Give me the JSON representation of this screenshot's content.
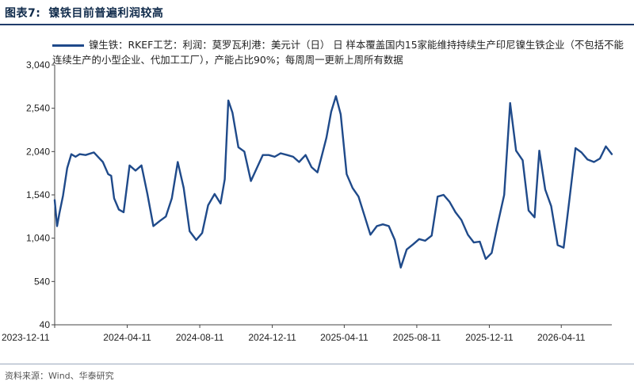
{
  "figure": {
    "number": "图表7:",
    "title": "镍铁目前普遍利润较高"
  },
  "legend_text": "镍生铁：RKEF工艺：利润：莫罗瓦利港：美元计（日） 日 样本覆盖国内15家能维持持续生产印尼镍生铁企业（不包括不能连续生产的小型企业、代加工工厂），产能占比90%；每周周一更新上周所有数据",
  "source": "资料来源：Wind、华泰研究",
  "colors": {
    "line": "#1f4a8a",
    "title": "#0f2a4a"
  },
  "chart_data": {
    "type": "line",
    "x_ticks": [
      "2023-12-11",
      "2024-04-11",
      "2024-08-11",
      "2024-12-11",
      "2025-04-11",
      "2025-08-11",
      "2025-12-11",
      "2026-04-11"
    ],
    "y_ticks": [
      "40",
      "540",
      "1,040",
      "1,540",
      "2,040",
      "2,540",
      "3,040"
    ],
    "ylim": [
      40,
      3040
    ],
    "xlim": [
      "2023-12-11",
      "2026-07-05"
    ],
    "series": [
      {
        "name": "镍生铁：RKEF工艺：利润：莫罗瓦利港：美元计（日）",
        "x": [
          "2023-12-11",
          "2023-12-15",
          "2023-12-19",
          "2023-12-25",
          "2024-01-01",
          "2024-01-08",
          "2024-01-15",
          "2024-01-22",
          "2024-02-01",
          "2024-02-15",
          "2024-03-01",
          "2024-03-10",
          "2024-03-15",
          "2024-03-20",
          "2024-03-28",
          "2024-04-05",
          "2024-04-15",
          "2024-04-25",
          "2024-05-05",
          "2024-05-15",
          "2024-05-25",
          "2024-06-05",
          "2024-06-15",
          "2024-06-25",
          "2024-07-05",
          "2024-07-15",
          "2024-07-25",
          "2024-08-05",
          "2024-08-15",
          "2024-08-25",
          "2024-09-05",
          "2024-09-15",
          "2024-09-22",
          "2024-09-28",
          "2024-10-05",
          "2024-10-15",
          "2024-10-25",
          "2024-11-05",
          "2024-11-15",
          "2024-11-25",
          "2024-12-05",
          "2024-12-15",
          "2024-12-25",
          "2025-01-05",
          "2025-01-15",
          "2025-01-25",
          "2025-02-05",
          "2025-02-15",
          "2025-02-25",
          "2025-03-05",
          "2025-03-12",
          "2025-03-20",
          "2025-03-28",
          "2025-04-05",
          "2025-04-15",
          "2025-04-25",
          "2025-05-05",
          "2025-05-15",
          "2025-05-25",
          "2025-06-05",
          "2025-06-15",
          "2025-06-25",
          "2025-07-05",
          "2025-07-15",
          "2025-07-25",
          "2025-08-05",
          "2025-08-15",
          "2025-08-25",
          "2025-09-05",
          "2025-09-15",
          "2025-09-25",
          "2025-10-05",
          "2025-10-15",
          "2025-10-25",
          "2025-11-05",
          "2025-11-15",
          "2025-11-25",
          "2025-12-05",
          "2025-12-15",
          "2025-12-25",
          "2026-01-05",
          "2026-01-15",
          "2026-01-25",
          "2026-02-05",
          "2026-02-15",
          "2026-02-25",
          "2026-03-05",
          "2026-03-15",
          "2026-03-25",
          "2026-04-05",
          "2026-04-15",
          "2026-04-25",
          "2026-05-05",
          "2026-05-15",
          "2026-05-25",
          "2026-06-05",
          "2026-06-15",
          "2026-06-25",
          "2026-07-05"
        ],
        "values": [
          1480,
          1180,
          1330,
          1530,
          1850,
          2010,
          1980,
          2010,
          2000,
          2030,
          1920,
          1780,
          1760,
          1500,
          1370,
          1340,
          1880,
          1820,
          1880,
          1550,
          1180,
          1240,
          1290,
          1500,
          1920,
          1620,
          1120,
          1020,
          1100,
          1420,
          1550,
          1440,
          1720,
          2630,
          2490,
          2090,
          2040,
          1700,
          1850,
          2000,
          2000,
          1980,
          2020,
          2000,
          1980,
          1920,
          2000,
          1860,
          1800,
          2010,
          2200,
          2500,
          2680,
          2470,
          1780,
          1620,
          1520,
          1300,
          1080,
          1180,
          1200,
          1180,
          1020,
          700,
          910,
          970,
          1030,
          1010,
          1070,
          1520,
          1540,
          1460,
          1340,
          1250,
          1080,
          990,
          1000,
          800,
          870,
          1200,
          1540,
          2600,
          2050,
          1940,
          1360,
          1280,
          2050,
          1600,
          1410,
          960,
          930,
          1500,
          2080,
          2030,
          1950,
          1920,
          1960,
          2100,
          2010
        ]
      }
    ],
    "xlabel": "",
    "ylabel": ""
  }
}
